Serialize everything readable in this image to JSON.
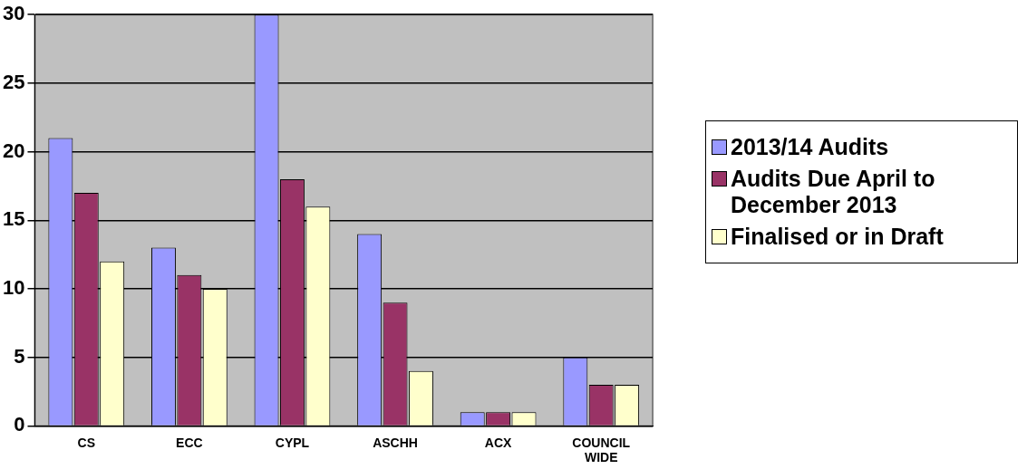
{
  "chart_data": {
    "type": "bar",
    "categories": [
      "CS",
      "ECC",
      "CYPL",
      "ASCHH",
      "ACX",
      "COUNCIL WIDE"
    ],
    "series": [
      {
        "name": "2013/14 Audits",
        "color": "#9999ff",
        "values": [
          21,
          13,
          30,
          14,
          1,
          5
        ]
      },
      {
        "name": "Audits Due April to December 2013",
        "color": "#993366",
        "values": [
          17,
          11,
          18,
          9,
          1,
          3
        ]
      },
      {
        "name": "Finalised or in Draft",
        "color": "#ffffcc",
        "values": [
          12,
          10,
          16,
          4,
          1,
          3
        ]
      }
    ],
    "ylim": [
      0,
      30
    ],
    "yticks": [
      0,
      5,
      10,
      15,
      20,
      25,
      30
    ],
    "grid": "y",
    "legend": "right"
  }
}
